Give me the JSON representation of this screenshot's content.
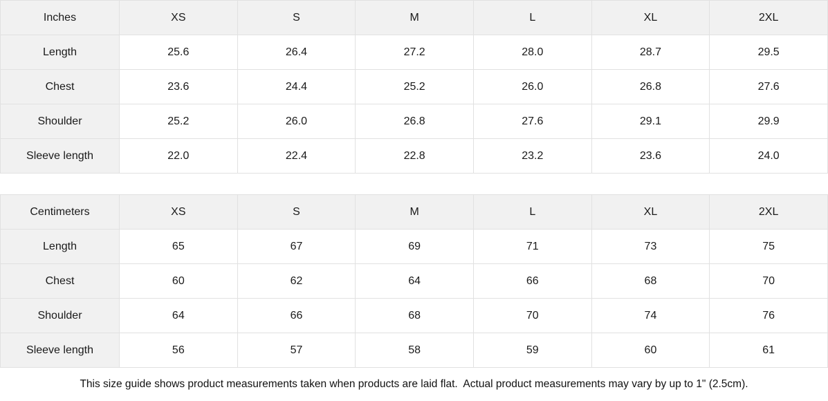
{
  "tables": [
    {
      "unit_label": "Inches",
      "sizes": [
        "XS",
        "S",
        "M",
        "L",
        "XL",
        "2XL"
      ],
      "rows": [
        {
          "label": "Length",
          "values": [
            "25.6",
            "26.4",
            "27.2",
            "28.0",
            "28.7",
            "29.5"
          ]
        },
        {
          "label": "Chest",
          "values": [
            "23.6",
            "24.4",
            "25.2",
            "26.0",
            "26.8",
            "27.6"
          ]
        },
        {
          "label": "Shoulder",
          "values": [
            "25.2",
            "26.0",
            "26.8",
            "27.6",
            "29.1",
            "29.9"
          ]
        },
        {
          "label": "Sleeve length",
          "values": [
            "22.0",
            "22.4",
            "22.8",
            "23.2",
            "23.6",
            "24.0"
          ]
        }
      ]
    },
    {
      "unit_label": "Centimeters",
      "sizes": [
        "XS",
        "S",
        "M",
        "L",
        "XL",
        "2XL"
      ],
      "rows": [
        {
          "label": "Length",
          "values": [
            "65",
            "67",
            "69",
            "71",
            "73",
            "75"
          ]
        },
        {
          "label": "Chest",
          "values": [
            "60",
            "62",
            "64",
            "66",
            "68",
            "70"
          ]
        },
        {
          "label": "Shoulder",
          "values": [
            "64",
            "66",
            "68",
            "70",
            "74",
            "76"
          ]
        },
        {
          "label": "Sleeve length",
          "values": [
            "56",
            "57",
            "58",
            "59",
            "60",
            "61"
          ]
        }
      ]
    }
  ],
  "footer": {
    "note": "This size guide shows product measurements taken when products are laid flat.  Actual product measurements may vary by up to 1\" (2.5cm)."
  },
  "layout_colors": {
    "header_bg": "#f1f1f1",
    "border": "#e1e1e1",
    "text": "#1a1a1a",
    "cell_bg": "#ffffff"
  }
}
